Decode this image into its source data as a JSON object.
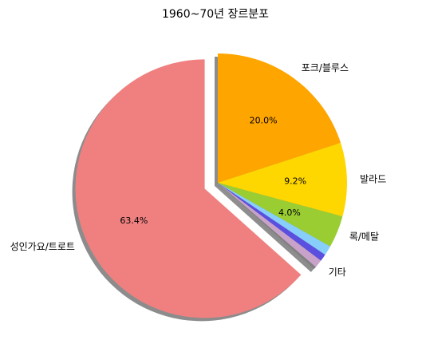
{
  "chart_data": {
    "type": "pie",
    "title": "1960~70년 장르분포",
    "slices": [
      {
        "label": "포크/블루스",
        "value": 20.0,
        "pct_label": "20.0%",
        "color": "#FFA500"
      },
      {
        "label": "발라드",
        "value": 9.2,
        "pct_label": "9.2%",
        "color": "#FFD700"
      },
      {
        "label": "록/메탈",
        "value": 4.0,
        "pct_label": "4.0%",
        "color": "#9ACD32"
      },
      {
        "label": "",
        "value": 1.2,
        "pct_label": "",
        "color": "#87CEFA"
      },
      {
        "label": "",
        "value": 0.9,
        "pct_label": "",
        "color": "#5B4FE0"
      },
      {
        "label": "기타",
        "value": 1.0,
        "pct_label": "",
        "color": "#C8A2C8"
      },
      {
        "label": "",
        "value": 0.3,
        "pct_label": "",
        "color": "#808080"
      },
      {
        "label": "성인가요/트로트",
        "value": 63.4,
        "pct_label": "63.4%",
        "color": "#F08080",
        "exploded": true
      }
    ],
    "start_angle_deg": 90,
    "direction": "clockwise",
    "shadow": true,
    "legend": "none"
  }
}
